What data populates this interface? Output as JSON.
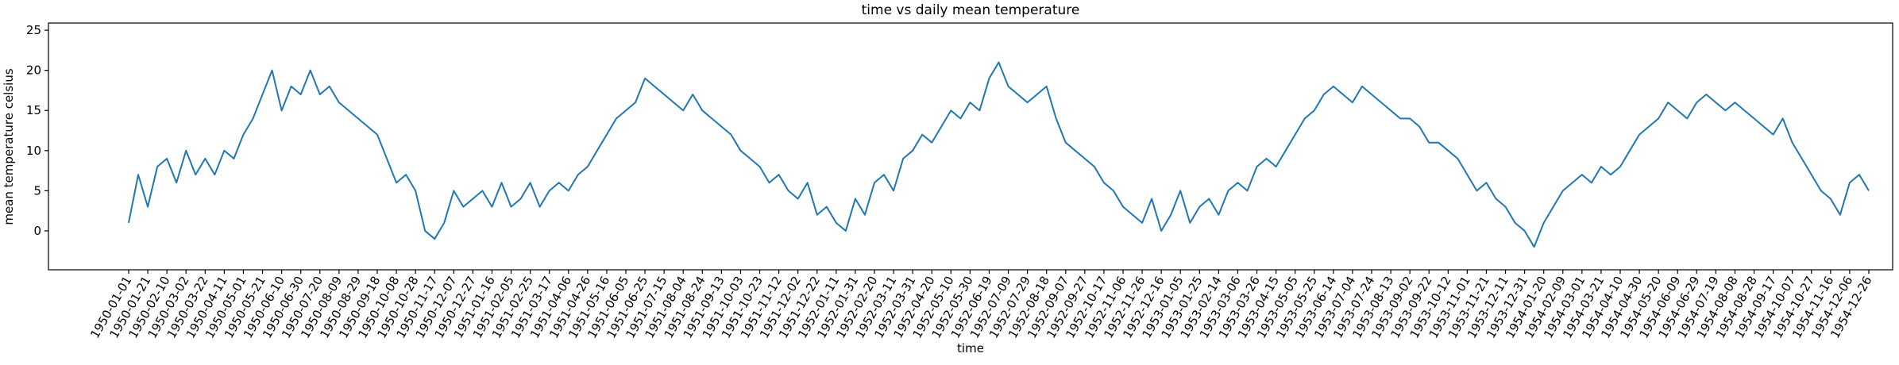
{
  "chart_data": {
    "type": "line",
    "title": "time vs daily mean temperature",
    "x_label": "time",
    "y_label": "mean temperature celsius",
    "color": "#1f77b4",
    "categories": [
      "1950-01-01",
      null,
      "1950-01-21",
      null,
      "1950-02-10",
      null,
      "1950-03-02",
      null,
      "1950-03-22",
      null,
      "1950-04-11",
      null,
      "1950-05-01",
      null,
      "1950-05-21",
      null,
      "1950-06-10",
      null,
      "1950-06-30",
      null,
      "1950-07-20",
      null,
      "1950-08-09",
      null,
      "1950-08-29",
      null,
      "1950-09-18",
      null,
      "1950-10-08",
      null,
      "1950-10-28",
      null,
      "1950-11-17",
      null,
      "1950-12-07",
      null,
      "1950-12-27",
      null,
      "1951-01-16",
      null,
      "1951-02-05",
      null,
      "1951-02-25",
      null,
      "1951-03-17",
      null,
      "1951-04-06",
      null,
      "1951-04-26",
      null,
      "1951-05-16",
      null,
      "1951-06-05",
      null,
      "1951-06-25",
      null,
      "1951-07-15",
      null,
      "1951-08-04",
      null,
      "1951-08-24",
      null,
      "1951-09-13",
      null,
      "1951-10-03",
      null,
      "1951-10-23",
      null,
      "1951-11-12",
      null,
      "1951-12-02",
      null,
      "1951-12-22",
      null,
      "1952-01-11",
      null,
      "1952-01-31",
      null,
      "1952-02-20",
      null,
      "1952-03-11",
      null,
      "1952-03-31",
      null,
      "1952-04-20",
      null,
      "1952-05-10",
      null,
      "1952-05-30",
      null,
      "1952-06-19",
      null,
      "1952-07-09",
      null,
      "1952-07-29",
      null,
      "1952-08-18",
      null,
      "1952-09-07",
      null,
      "1952-09-27",
      null,
      "1952-10-17",
      null,
      "1952-11-06",
      null,
      "1952-11-26",
      null,
      "1952-12-16",
      null,
      "1953-01-05",
      null,
      "1953-01-25",
      null,
      "1953-02-14",
      null,
      "1953-03-06",
      null,
      "1953-03-26",
      null,
      "1953-04-15",
      null,
      "1953-05-05",
      null,
      "1953-05-25",
      null,
      "1953-06-14",
      null,
      "1953-07-04",
      null,
      "1953-07-24",
      null,
      "1953-08-13",
      null,
      "1953-09-02",
      null,
      "1953-09-22",
      null,
      "1953-10-12",
      null,
      "1953-11-01",
      null,
      "1953-11-21",
      null,
      "1953-12-11",
      null,
      "1953-12-31",
      null,
      "1954-01-20",
      null,
      "1954-02-09",
      null,
      "1954-03-01",
      null,
      "1954-03-21",
      null,
      "1954-04-10",
      null,
      "1954-04-30",
      null,
      "1954-05-20",
      null,
      "1954-06-09",
      null,
      "1954-06-29",
      null,
      "1954-07-19",
      null,
      "1954-08-08",
      null,
      "1954-08-28",
      null,
      "1954-09-17",
      null,
      "1954-10-07",
      null,
      "1954-10-27",
      null,
      "1954-11-16",
      null,
      "1954-12-06",
      null,
      "1954-12-26"
    ],
    "values": [
      1,
      7,
      3,
      8,
      9,
      6,
      10,
      7,
      9,
      7,
      10,
      9,
      12,
      14,
      17,
      20,
      15,
      18,
      17,
      20,
      17,
      18,
      16,
      15,
      14,
      13,
      12,
      9,
      6,
      7,
      5,
      0,
      -1,
      1,
      5,
      3,
      4,
      5,
      3,
      6,
      3,
      4,
      6,
      3,
      5,
      6,
      5,
      7,
      8,
      10,
      12,
      14,
      15,
      16,
      19,
      18,
      17,
      16,
      15,
      17,
      15,
      14,
      13,
      12,
      10,
      9,
      8,
      6,
      7,
      5,
      4,
      6,
      2,
      3,
      1,
      0,
      4,
      2,
      6,
      7,
      5,
      9,
      10,
      12,
      11,
      13,
      15,
      14,
      16,
      15,
      19,
      21,
      18,
      17,
      16,
      17,
      18,
      14,
      11,
      10,
      9,
      8,
      6,
      5,
      3,
      2,
      1,
      4,
      0,
      2,
      5,
      1,
      3,
      4,
      2,
      5,
      6,
      5,
      8,
      9,
      8,
      10,
      12,
      14,
      15,
      17,
      18,
      17,
      16,
      18,
      17,
      16,
      15,
      14,
      14,
      13,
      11,
      11,
      10,
      9,
      7,
      5,
      6,
      4,
      3,
      1,
      0,
      -2,
      1,
      3,
      5,
      6,
      7,
      6,
      8,
      7,
      8,
      10,
      12,
      13,
      14,
      16,
      15,
      14,
      16,
      17,
      16,
      15,
      16,
      15,
      14,
      13,
      12,
      14,
      11,
      9,
      7,
      5,
      4,
      2,
      6,
      7,
      5
    ],
    "ylim": [
      -4.85,
      25.9
    ],
    "yticks": [
      0,
      5,
      10,
      15,
      20,
      25
    ]
  }
}
